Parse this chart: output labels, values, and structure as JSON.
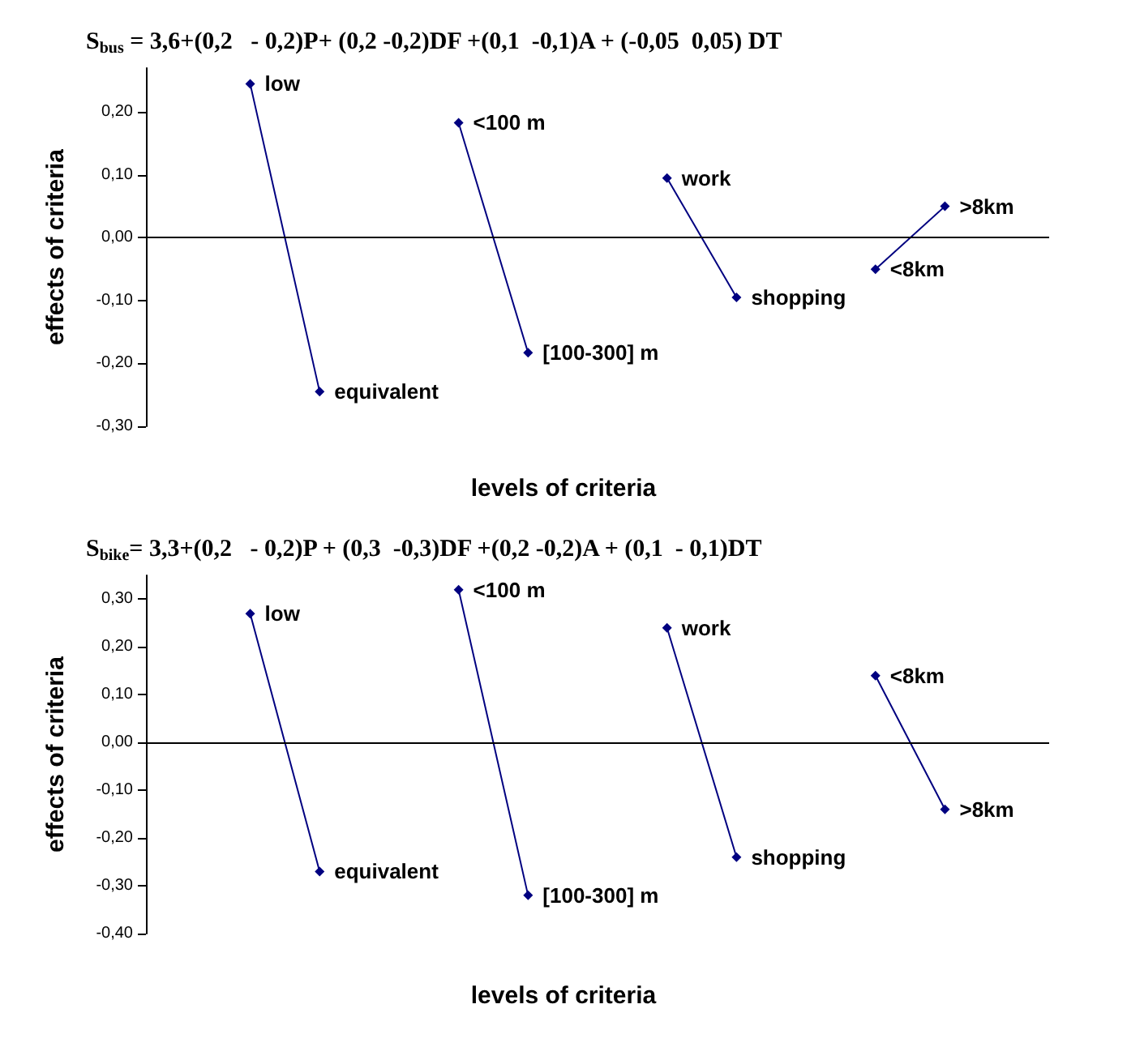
{
  "chart_data": [
    {
      "type": "line",
      "title": "S$_{bus}$ = 3,6+(0,2   - 0,2)P+ (0,2 -0,2)DF +(0,1  -0,1)A + (-0,05  0,05) DT",
      "xlabel": "levels of criteria",
      "ylabel": "effects of criteria",
      "categories": [
        null,
        null,
        null,
        null,
        null,
        null,
        null,
        null,
        null,
        null,
        null,
        null,
        null
      ],
      "series": [
        {
          "color": "#000080",
          "values": [
            null,
            0.245,
            -0.245,
            null,
            null,
            null,
            null,
            null,
            null,
            null,
            null,
            null,
            null
          ],
          "value_labels": [
            null,
            "low",
            "equivalent",
            null,
            null,
            null,
            null,
            null,
            null,
            null,
            null,
            null,
            null
          ]
        },
        {
          "color": "#000080",
          "values": [
            null,
            null,
            null,
            null,
            0.183,
            -0.183,
            null,
            null,
            null,
            null,
            null,
            null,
            null
          ],
          "value_labels": [
            null,
            null,
            null,
            null,
            "<100 m",
            "[100-300] m",
            null,
            null,
            null,
            null,
            null,
            null,
            null
          ]
        },
        {
          "color": "#000080",
          "values": [
            null,
            null,
            null,
            null,
            null,
            null,
            null,
            0.095,
            -0.095,
            null,
            null,
            null,
            null
          ],
          "value_labels": [
            null,
            null,
            null,
            null,
            null,
            null,
            null,
            "work",
            "shopping",
            null,
            null,
            null,
            null
          ]
        },
        {
          "color": "#000080",
          "values": [
            null,
            null,
            null,
            null,
            null,
            null,
            null,
            null,
            null,
            null,
            -0.05,
            0.05,
            null
          ],
          "value_labels": [
            null,
            null,
            null,
            null,
            null,
            null,
            null,
            null,
            null,
            null,
            "<8km",
            ">8km",
            null
          ]
        }
      ],
      "ylim": [
        -0.3,
        0.27
      ],
      "yticks": [
        {
          "value": -0.3,
          "label": "-0,30"
        },
        {
          "value": -0.2,
          "label": "-0,20"
        },
        {
          "value": -0.1,
          "label": "-0,10"
        },
        {
          "value": 0,
          "label": "0,00"
        },
        {
          "value": 0.1,
          "label": "0,10"
        },
        {
          "value": 0.2,
          "label": "0,20"
        }
      ],
      "ref_lines": [
        {
          "axis": "y",
          "value": 0,
          "color": "#000000"
        }
      ],
      "tick_labels": "y",
      "grid": false,
      "marker": "diamond",
      "line_style": "solid"
    },
    {
      "type": "line",
      "title": "S$_{bike}$= 3,3+(0,2   - 0,2)P + (0,3  -0,3)DF +(0,2 -0,2)A + (0,1  - 0,1)DT",
      "xlabel": "levels of criteria",
      "ylabel": "effects of criteria",
      "categories": [
        null,
        null,
        null,
        null,
        null,
        null,
        null,
        null,
        null,
        null,
        null,
        null,
        null
      ],
      "series": [
        {
          "color": "#000080",
          "values": [
            null,
            0.27,
            -0.27,
            null,
            null,
            null,
            null,
            null,
            null,
            null,
            null,
            null,
            null
          ],
          "value_labels": [
            null,
            "low",
            "equivalent",
            null,
            null,
            null,
            null,
            null,
            null,
            null,
            null,
            null,
            null
          ]
        },
        {
          "color": "#000080",
          "values": [
            null,
            null,
            null,
            null,
            0.32,
            -0.32,
            null,
            null,
            null,
            null,
            null,
            null,
            null
          ],
          "value_labels": [
            null,
            null,
            null,
            null,
            "<100 m",
            "[100-300] m",
            null,
            null,
            null,
            null,
            null,
            null,
            null
          ]
        },
        {
          "color": "#000080",
          "values": [
            null,
            null,
            null,
            null,
            null,
            null,
            null,
            0.24,
            -0.24,
            null,
            null,
            null,
            null
          ],
          "value_labels": [
            null,
            null,
            null,
            null,
            null,
            null,
            null,
            "work",
            "shopping",
            null,
            null,
            null,
            null
          ]
        },
        {
          "color": "#000080",
          "values": [
            null,
            null,
            null,
            null,
            null,
            null,
            null,
            null,
            null,
            null,
            0.14,
            -0.14,
            null
          ],
          "value_labels": [
            null,
            null,
            null,
            null,
            null,
            null,
            null,
            null,
            null,
            null,
            "<8km",
            ">8km",
            null
          ]
        }
      ],
      "ylim": [
        -0.4,
        0.35
      ],
      "yticks": [
        {
          "value": -0.4,
          "label": "-0,40"
        },
        {
          "value": -0.3,
          "label": "-0,30"
        },
        {
          "value": -0.2,
          "label": "-0,20"
        },
        {
          "value": -0.1,
          "label": "-0,10"
        },
        {
          "value": 0,
          "label": "0,00"
        },
        {
          "value": 0.1,
          "label": "0,10"
        },
        {
          "value": 0.2,
          "label": "0,20"
        },
        {
          "value": 0.3,
          "label": "0,30"
        }
      ],
      "ref_lines": [
        {
          "axis": "y",
          "value": 0,
          "color": "#000000"
        }
      ],
      "tick_labels": "y",
      "grid": false,
      "marker": "diamond",
      "line_style": "solid"
    }
  ]
}
